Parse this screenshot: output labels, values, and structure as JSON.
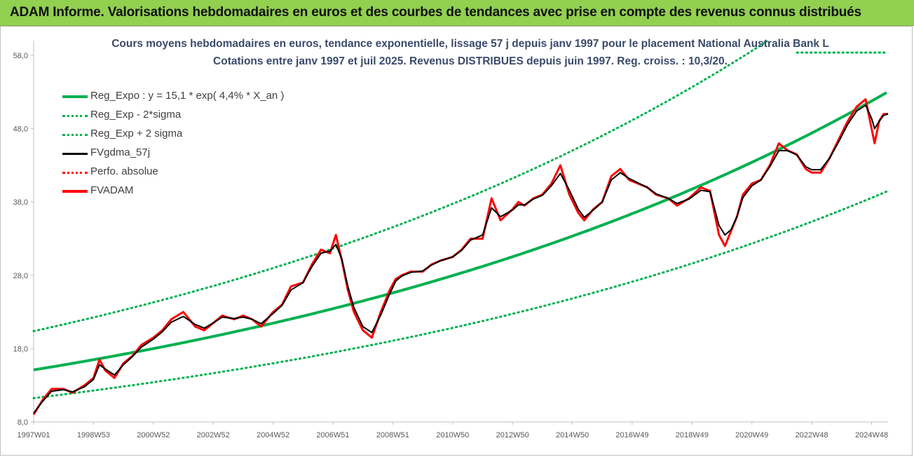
{
  "header": {
    "title": "ADAM Informe. Valorisations hebdomadaires en euros et des courbes de tendances avec prise en compte des revenus connus distribués"
  },
  "chart_data": {
    "type": "line",
    "subtitle_line1": "Cours moyens hebdomadaires en euros, tendance exponentielle, lissage 57 j depuis janv 1997  pour le placement National Australia Bank L",
    "subtitle_line2": "Cotations entre janv 1997 et juil 2025. Revenus DISTRIBUES depuis juin 1997. Reg. croiss. : 10,3/20.",
    "ylim": [
      8,
      60
    ],
    "y_ticks": [
      "8,0",
      "18,0",
      "28,0",
      "38,0",
      "48,0",
      "58,0"
    ],
    "y_tick_values": [
      8,
      18,
      28,
      38,
      48,
      58
    ],
    "x_ticks": [
      "1997W01",
      "1998W53",
      "2000W52",
      "2002W52",
      "2004W52",
      "2006W51",
      "2008W51",
      "2010W50",
      "2012W50",
      "2014W50",
      "2016W49",
      "2018W49",
      "2020W49",
      "2022W48",
      "2024W48"
    ],
    "x_tick_values": [
      1997.0,
      1999.0,
      2001.0,
      2003.0,
      2005.0,
      2007.0,
      2009.0,
      2011.0,
      2013.0,
      2015.0,
      2017.0,
      2019.0,
      2021.0,
      2023.0,
      2025.0
    ],
    "xlim": [
      1997.0,
      2025.55
    ],
    "grid": false,
    "legend_position": "top-left",
    "regression": {
      "base": 15.1,
      "rate": 0.044,
      "sigma_factor_low": 0.745,
      "sigma_factor_high": 1.35
    },
    "legend": [
      {
        "label": "Reg_Expo : y = 15,1 * exp( 4,4% *  X_an )",
        "color": "#00b050",
        "style": "solid-thick"
      },
      {
        "label": "Reg_Exp - 2*sigma",
        "color": "#00b050",
        "style": "dotted"
      },
      {
        "label": "Reg_Exp + 2 sigma",
        "color": "#00b050",
        "style": "dotted"
      },
      {
        "label": "FVgdma_57j",
        "color": "#000000",
        "style": "solid"
      },
      {
        "label": "Perfo. absolue",
        "color": "#ff0000",
        "style": "dotted"
      },
      {
        "label": "FVADAM",
        "color": "#ff0000",
        "style": "solid-thick"
      }
    ],
    "series": [
      {
        "name": "FVADAM",
        "color": "#ff0000",
        "x": [
          1997.0,
          1997.3,
          1997.6,
          1998.0,
          1998.3,
          1998.7,
          1999.0,
          1999.2,
          1999.4,
          1999.7,
          2000.0,
          2000.3,
          2000.6,
          2001.0,
          2001.3,
          2001.6,
          2002.0,
          2002.4,
          2002.7,
          2003.0,
          2003.3,
          2003.7,
          2004.0,
          2004.3,
          2004.6,
          2005.0,
          2005.3,
          2005.6,
          2006.0,
          2006.3,
          2006.6,
          2006.9,
          2007.1,
          2007.3,
          2007.5,
          2007.7,
          2008.0,
          2008.3,
          2008.6,
          2008.9,
          2009.1,
          2009.3,
          2009.6,
          2010.0,
          2010.3,
          2010.6,
          2011.0,
          2011.3,
          2011.6,
          2012.0,
          2012.3,
          2012.6,
          2013.0,
          2013.2,
          2013.4,
          2013.7,
          2014.0,
          2014.3,
          2014.6,
          2014.9,
          2015.2,
          2015.4,
          2015.7,
          2016.0,
          2016.3,
          2016.6,
          2016.9,
          2017.2,
          2017.5,
          2017.8,
          2018.2,
          2018.5,
          2018.9,
          2019.3,
          2019.6,
          2019.9,
          2020.1,
          2020.3,
          2020.5,
          2020.7,
          2021.0,
          2021.3,
          2021.6,
          2021.9,
          2022.2,
          2022.5,
          2022.8,
          2023.0,
          2023.3,
          2023.6,
          2023.9,
          2024.2,
          2024.5,
          2024.8,
          2025.0,
          2025.1,
          2025.25,
          2025.4,
          2025.55
        ],
        "values": [
          9.0,
          11.0,
          12.5,
          12.5,
          12.0,
          13.0,
          14.0,
          16.5,
          15.0,
          14.0,
          16.0,
          17.0,
          18.5,
          19.5,
          20.5,
          22.0,
          23.0,
          21.0,
          20.5,
          21.5,
          22.5,
          22.0,
          22.5,
          22.0,
          21.0,
          23.0,
          24.0,
          26.5,
          27.0,
          29.5,
          31.5,
          31.0,
          33.5,
          30.0,
          26.0,
          23.0,
          20.5,
          19.5,
          23.0,
          26.0,
          27.5,
          28.0,
          28.5,
          28.5,
          29.5,
          30.0,
          30.5,
          31.5,
          33.0,
          33.0,
          38.5,
          35.5,
          37.0,
          38.0,
          37.5,
          38.5,
          39.0,
          40.5,
          43.0,
          39.0,
          36.5,
          35.5,
          37.0,
          38.0,
          41.5,
          42.5,
          41.0,
          40.5,
          40.0,
          39.0,
          38.5,
          37.5,
          38.5,
          40.0,
          39.5,
          33.5,
          32.0,
          34.0,
          36.0,
          39.0,
          40.5,
          41.0,
          43.0,
          46.0,
          45.0,
          44.5,
          42.5,
          42.0,
          42.0,
          44.0,
          46.5,
          49.0,
          51.0,
          52.0,
          48.0,
          46.0,
          49.0,
          50.0,
          50.0
        ]
      },
      {
        "name": "FVgdma_57j",
        "color": "#000000",
        "x": [
          1997.0,
          1997.3,
          1997.6,
          1998.0,
          1998.3,
          1998.7,
          1999.0,
          1999.2,
          1999.4,
          1999.7,
          2000.0,
          2000.3,
          2000.6,
          2001.0,
          2001.3,
          2001.6,
          2002.0,
          2002.4,
          2002.7,
          2003.0,
          2003.3,
          2003.7,
          2004.0,
          2004.3,
          2004.6,
          2005.0,
          2005.3,
          2005.6,
          2006.0,
          2006.3,
          2006.6,
          2006.9,
          2007.1,
          2007.3,
          2007.5,
          2007.7,
          2008.0,
          2008.3,
          2008.6,
          2008.9,
          2009.1,
          2009.3,
          2009.6,
          2010.0,
          2010.3,
          2010.6,
          2011.0,
          2011.3,
          2011.6,
          2012.0,
          2012.3,
          2012.6,
          2013.0,
          2013.2,
          2013.4,
          2013.7,
          2014.0,
          2014.3,
          2014.6,
          2014.9,
          2015.2,
          2015.4,
          2015.7,
          2016.0,
          2016.3,
          2016.6,
          2016.9,
          2017.2,
          2017.5,
          2017.8,
          2018.2,
          2018.5,
          2018.9,
          2019.3,
          2019.6,
          2019.9,
          2020.1,
          2020.3,
          2020.5,
          2020.7,
          2021.0,
          2021.3,
          2021.6,
          2021.9,
          2022.2,
          2022.5,
          2022.8,
          2023.0,
          2023.3,
          2023.6,
          2023.9,
          2024.2,
          2024.5,
          2024.8,
          2025.0,
          2025.1,
          2025.25,
          2025.4,
          2025.55
        ],
        "values": [
          9.2,
          10.8,
          12.2,
          12.4,
          12.1,
          12.8,
          13.8,
          15.8,
          15.2,
          14.4,
          15.8,
          16.9,
          18.2,
          19.3,
          20.3,
          21.6,
          22.4,
          21.3,
          20.8,
          21.5,
          22.3,
          22.1,
          22.3,
          22.0,
          21.4,
          22.8,
          23.9,
          26.0,
          27.0,
          29.2,
          31.0,
          31.3,
          32.2,
          30.2,
          26.5,
          23.6,
          21.0,
          20.2,
          22.6,
          25.5,
          27.2,
          27.9,
          28.4,
          28.6,
          29.4,
          30.0,
          30.5,
          31.4,
          32.8,
          33.5,
          37.2,
          36.0,
          36.9,
          37.6,
          37.6,
          38.4,
          38.9,
          40.2,
          41.9,
          39.6,
          37.0,
          35.9,
          36.9,
          38.0,
          41.0,
          42.0,
          41.2,
          40.6,
          40.0,
          39.1,
          38.5,
          37.8,
          38.4,
          39.6,
          39.4,
          34.8,
          33.5,
          34.2,
          36.0,
          38.6,
          40.2,
          41.0,
          42.8,
          45.0,
          45.0,
          44.4,
          42.8,
          42.4,
          42.4,
          44.0,
          46.2,
          48.6,
          50.4,
          51.2,
          49.4,
          48.0,
          49.0,
          49.8,
          50.0
        ]
      }
    ]
  }
}
